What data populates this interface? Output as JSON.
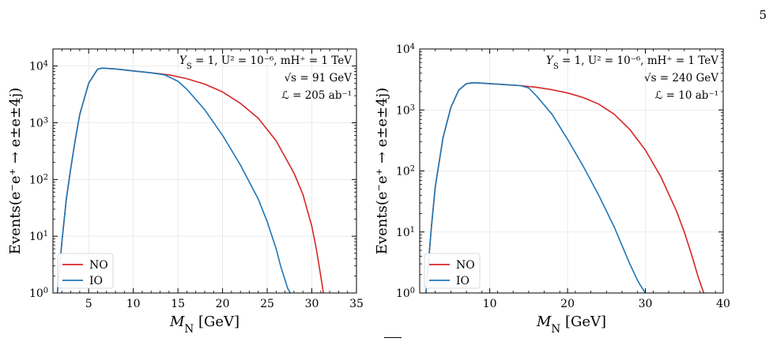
{
  "page_number": "5",
  "chart_data": [
    {
      "type": "line",
      "xlabel": "M_N [GeV]",
      "ylabel": "Events(e⁻e⁺ → e±e±4j)",
      "xlim": [
        1,
        35
      ],
      "ylim": [
        1,
        20000
      ],
      "yscale": "log",
      "grid": true,
      "legend_placement": "lower-left",
      "x_ticks": [
        5,
        10,
        15,
        20,
        25,
        30,
        35
      ],
      "x_tick_labels": [
        "5",
        "10",
        "15",
        "20",
        "25",
        "30",
        "35"
      ],
      "y_ticks": [
        1,
        10,
        100,
        1000,
        10000
      ],
      "y_tick_labels": [
        {
          "base": "10",
          "exp": "0"
        },
        {
          "base": "10",
          "exp": "1"
        },
        {
          "base": "10",
          "exp": "2"
        },
        {
          "base": "10",
          "exp": "3"
        },
        {
          "base": "10",
          "exp": "4"
        }
      ],
      "annotations": [
        "Y_S = 1, U² = 10⁻⁶, m_H⁺ = 1 TeV",
        "√s = 91 GeV",
        "ℒ = 205 ab⁻¹"
      ],
      "series": [
        {
          "name": "NO",
          "color": "#d62728",
          "x": [
            1.5,
            2.0,
            2.5,
            3.0,
            3.5,
            4.0,
            5.0,
            6.0,
            6.5,
            8.0,
            10.0,
            12.0,
            14.0,
            16.0,
            18.0,
            20.0,
            22.0,
            24.0,
            26.0,
            28.0,
            29.0,
            30.0,
            30.5,
            31.0,
            31.3
          ],
          "y": [
            1.0,
            8,
            45,
            160,
            500,
            1400,
            5000,
            8800,
            9200,
            8900,
            8200,
            7600,
            7000,
            6000,
            4800,
            3500,
            2200,
            1200,
            480,
            130,
            55,
            15,
            6,
            2,
            1.0
          ]
        },
        {
          "name": "IO",
          "color": "#1f77b4",
          "x": [
            1.5,
            2.0,
            2.5,
            3.0,
            3.5,
            4.0,
            5.0,
            6.0,
            6.5,
            8.0,
            10.0,
            12.0,
            13.5,
            15.0,
            16.0,
            18.0,
            20.0,
            22.0,
            24.0,
            25.0,
            26.0,
            26.5,
            27.0,
            27.3,
            27.6
          ],
          "y": [
            1.0,
            8,
            45,
            160,
            500,
            1400,
            5000,
            8800,
            9200,
            8900,
            8200,
            7600,
            7000,
            5400,
            3900,
            1700,
            600,
            180,
            45,
            18,
            6,
            3,
            1.7,
            1.2,
            1.0
          ]
        }
      ]
    },
    {
      "type": "line",
      "xlabel": "M_N [GeV]",
      "ylabel": "Events(e⁻e⁺ → e±e±4j)",
      "xlim": [
        1,
        40
      ],
      "ylim": [
        1,
        10000
      ],
      "yscale": "log",
      "grid": true,
      "legend_placement": "lower-left",
      "x_ticks": [
        10,
        20,
        30,
        40
      ],
      "x_tick_labels": [
        "10",
        "20",
        "30",
        "40"
      ],
      "y_ticks": [
        1,
        10,
        100,
        1000,
        10000
      ],
      "y_tick_labels": [
        {
          "base": "10",
          "exp": "0"
        },
        {
          "base": "10",
          "exp": "1"
        },
        {
          "base": "10",
          "exp": "2"
        },
        {
          "base": "10",
          "exp": "3"
        },
        {
          "base": "10",
          "exp": "4"
        }
      ],
      "annotations": [
        "Y_S = 1, U² = 10⁻⁶, m_H⁺ = 1 TeV",
        "√s = 240 GeV",
        "ℒ = 10 ab⁻¹"
      ],
      "series": [
        {
          "name": "NO",
          "color": "#d62728",
          "x": [
            1.8,
            2.5,
            3.0,
            4.0,
            5.0,
            6.0,
            7.0,
            8.0,
            10.0,
            12.0,
            14.0,
            16.0,
            18.0,
            20.0,
            22.0,
            24.0,
            26.0,
            28.0,
            30.0,
            32.0,
            34.0,
            35.0,
            36.0,
            36.8,
            37.5
          ],
          "y": [
            1.0,
            12,
            55,
            350,
            1100,
            2100,
            2700,
            2800,
            2700,
            2600,
            2500,
            2350,
            2150,
            1900,
            1600,
            1250,
            850,
            480,
            220,
            80,
            22,
            10,
            4,
            1.8,
            1.0
          ]
        },
        {
          "name": "IO",
          "color": "#1f77b4",
          "x": [
            1.8,
            2.5,
            3.0,
            4.0,
            5.0,
            6.0,
            7.0,
            8.0,
            10.0,
            12.0,
            14.0,
            15.0,
            16.0,
            18.0,
            20.0,
            22.0,
            24.0,
            26.0,
            27.0,
            28.0,
            29.0,
            29.5,
            30.0
          ],
          "y": [
            1.0,
            12,
            55,
            350,
            1100,
            2100,
            2700,
            2800,
            2700,
            2600,
            2500,
            2300,
            1700,
            850,
            330,
            120,
            40,
            12,
            6,
            3,
            1.6,
            1.25,
            1.0
          ]
        }
      ]
    }
  ]
}
